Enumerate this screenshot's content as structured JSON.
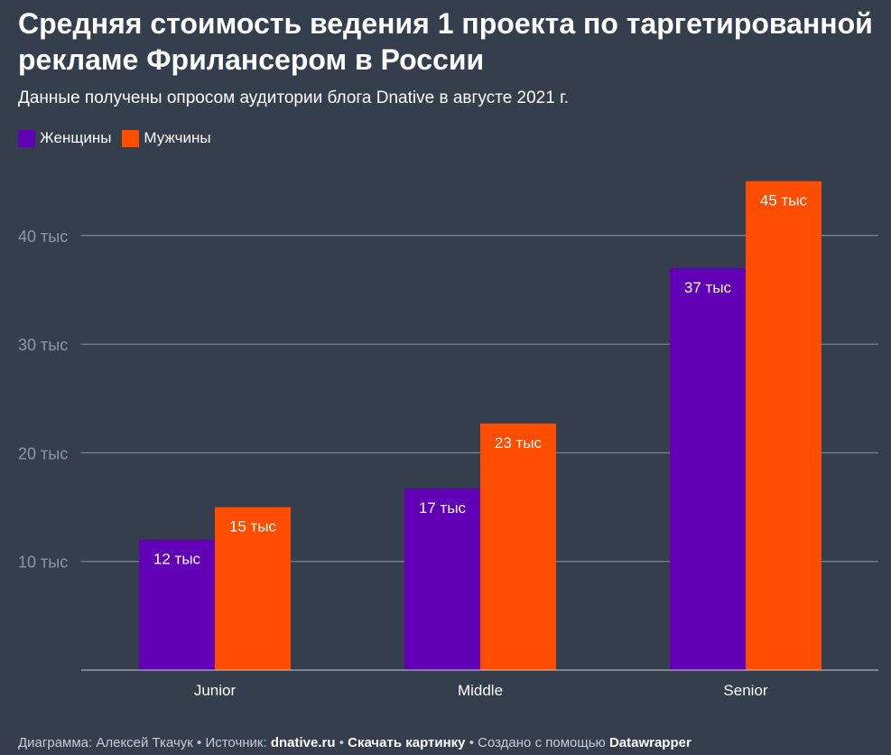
{
  "colors": {
    "background": "#343e4d",
    "women": "#6200b6",
    "men": "#ff4d00",
    "grid": "#8b95a2",
    "tick_text": "#8f98a4"
  },
  "legend": {
    "women": "Женщины",
    "men": "Мужчины"
  },
  "footer": {
    "author_prefix": "Диаграмма: Алексей Ткачук",
    "source_prefix": "Источник:",
    "source_link": "dnative.ru",
    "download_link": "Скачать картинку",
    "made_prefix": "Создано с помощью",
    "made_link": "Datawrapper",
    "separator": "•"
  },
  "chart_data": {
    "type": "bar",
    "title": "Средняя стоимость ведения 1 проекта по таргетированной рекламе Фрилансером в России",
    "subtitle": "Данные получены опросом аудитории блога Dnative в августе 2021 г.",
    "categories": [
      "Junior",
      "Middle",
      "Senior"
    ],
    "series": [
      {
        "name": "Женщины",
        "color": "#6200b6",
        "values": [
          12000,
          16700,
          37000
        ],
        "labels": [
          "12 тыс",
          "17 тыс",
          "37 тыс"
        ]
      },
      {
        "name": "Мужчины",
        "color": "#ff4d00",
        "values": [
          15000,
          22700,
          45000
        ],
        "labels": [
          "15 тыс",
          "23 тыс",
          "45 тыс"
        ]
      }
    ],
    "yticks": [
      {
        "value": 10000,
        "label": "10 тыс"
      },
      {
        "value": 20000,
        "label": "20 тыс"
      },
      {
        "value": 30000,
        "label": "30 тыс"
      },
      {
        "value": 40000,
        "label": "40 тыс"
      }
    ],
    "ylim": [
      0,
      45000
    ],
    "grid": true,
    "legend_position": "top-left"
  }
}
